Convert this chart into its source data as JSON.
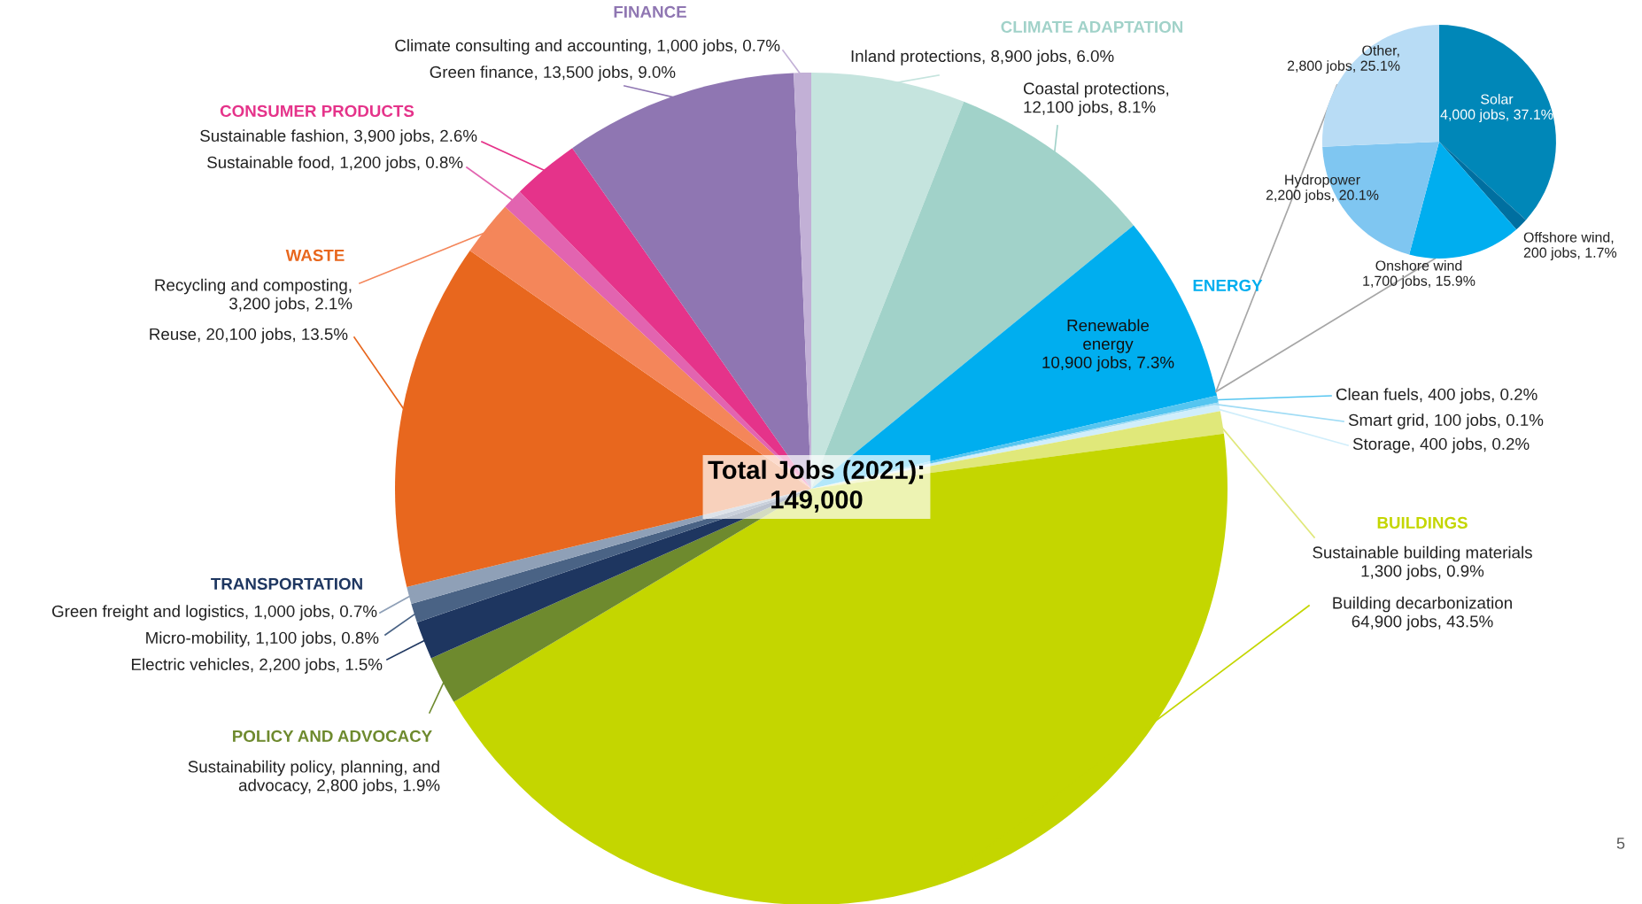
{
  "chart_data": [
    {
      "type": "pie",
      "categories": [
        "Inland protections, 8,900 jobs, 6.0%",
        "Coastal protections,\n12,100 jobs, 8.1%",
        "Renewable\nenergy\n10,900 jobs, 7.3%",
        "Clean fuels, 400 jobs, 0.2%",
        "Smart grid, 100 jobs, 0.1%",
        "Storage, 400 jobs, 0.2%",
        "Sustainable building materials\n1,300 jobs, 0.9%",
        "Building decarbonization\n64,900 jobs, 43.5%",
        "Sustainability policy, planning, and\nadvocacy, 2,800 jobs, 1.9%",
        "Electric vehicles, 2,200 jobs, 1.5%",
        "Micro-mobility, 1,100 jobs, 0.8%",
        "Green freight and logistics, 1,000 jobs, 0.7%",
        "Reuse, 20,100 jobs, 13.5%",
        "Recycling and composting,\n3,200 jobs, 2.1%",
        "Sustainable food, 1,200 jobs, 0.8%",
        "Sustainable fashion, 3,900 jobs, 2.6%",
        "Green finance, 13,500 jobs, 9.0%",
        "Climate consulting and accounting, 1,000 jobs, 0.7%"
      ],
      "values": [
        8900,
        12100,
        10900,
        400,
        100,
        400,
        1300,
        64900,
        2800,
        2200,
        1100,
        1000,
        20100,
        3200,
        1200,
        3900,
        13500,
        1000
      ],
      "colors": [
        "#c5e4de",
        "#a1d2c9",
        "#00aeef",
        "#55c5f0",
        "#a0dcf5",
        "#d0eefb",
        "#e0e87a",
        "#c4d600",
        "#6e8a2e",
        "#1e3660",
        "#4a6385",
        "#8fa0b7",
        "#e8671e",
        "#f4865a",
        "#e264b0",
        "#e5338a",
        "#8f76b2",
        "#c2b0d6"
      ],
      "annotations": [
        "FINANCE",
        "CLIMATE ADAPTATION",
        "CONSUMER PRODUCTS",
        "WASTE",
        "ENERGY",
        "TRANSPORTATION",
        "BUILDINGS",
        "POLICY AND ADVOCACY",
        "Total Jobs (2021):\n149,000",
        "5"
      ]
    },
    {
      "type": "pie",
      "categories": [
        "Solar\n4,000 jobs, 37.1%",
        "Offshore wind,\n200 jobs, 1.7%",
        "Onshore wind\n1,700 jobs, 15.9%",
        "Hydropower\n2,200 jobs, 20.1%",
        "Other,\n2,800 jobs, 25.1%"
      ],
      "values": [
        4000,
        200,
        1700,
        2200,
        2800
      ],
      "colors": [
        "#0087b8",
        "#006fa0",
        "#00aeef",
        "#7fc6f1",
        "#b8dcf5"
      ]
    }
  ]
}
